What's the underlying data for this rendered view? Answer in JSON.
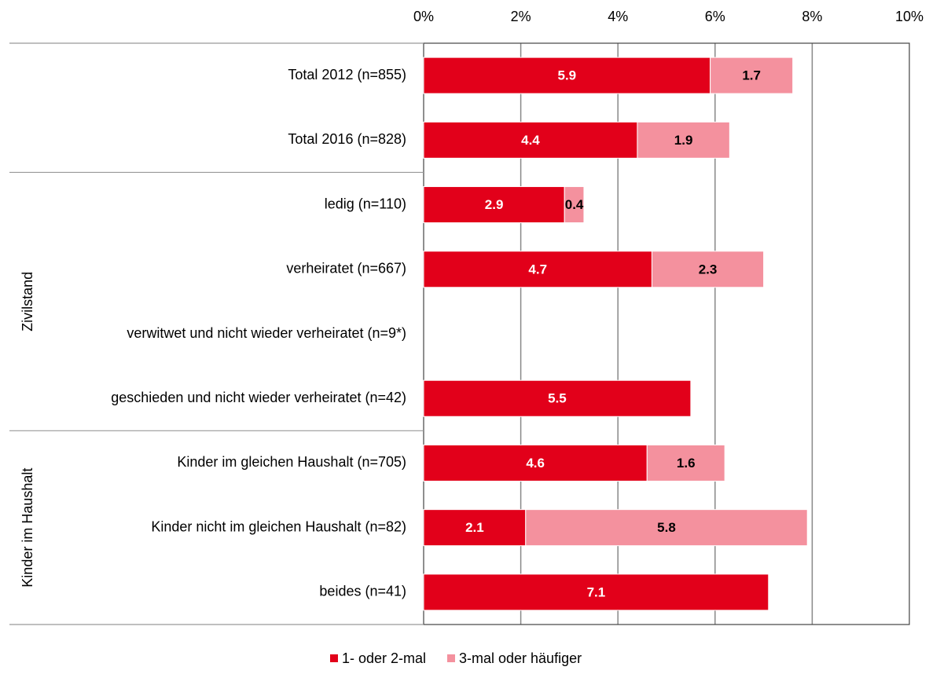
{
  "chart_data": {
    "type": "stacked-bar-horizontal",
    "groups": [
      {
        "name": null,
        "categories": [
          "Total 2012 (n=855)",
          "Total 2016 (n=828)"
        ]
      },
      {
        "name": "Zivilstand",
        "categories": [
          "ledig (n=110)",
          "verheiratet (n=667)",
          "verwitwet und nicht wieder verheiratet (n=9*)",
          "geschieden und nicht wieder verheiratet (n=42)"
        ]
      },
      {
        "name": "Kinder im Haushalt",
        "categories": [
          "Kinder im gleichen Haushalt (n=705)",
          "Kinder nicht im gleichen Haushalt (n=82)",
          "beides (n=41)"
        ]
      }
    ],
    "series": [
      {
        "name": "1- oder 2-mal",
        "color": "#e2001a",
        "label_color": "#ffffff",
        "values": [
          5.9,
          4.4,
          2.9,
          4.7,
          null,
          5.5,
          4.6,
          2.1,
          7.1
        ]
      },
      {
        "name": "3-mal oder häufiger",
        "color": "#f4919e",
        "label_color": "#000000",
        "values": [
          1.7,
          1.9,
          0.4,
          2.3,
          null,
          null,
          1.6,
          5.8,
          null
        ]
      }
    ],
    "xlim": [
      0,
      10
    ],
    "xticks": [
      {
        "value": 0,
        "label": "0%"
      },
      {
        "value": 2,
        "label": "2%"
      },
      {
        "value": 4,
        "label": "4%"
      },
      {
        "value": 6,
        "label": "6%"
      },
      {
        "value": 8,
        "label": "8%"
      },
      {
        "value": 10,
        "label": "10%"
      }
    ],
    "grid": true
  }
}
